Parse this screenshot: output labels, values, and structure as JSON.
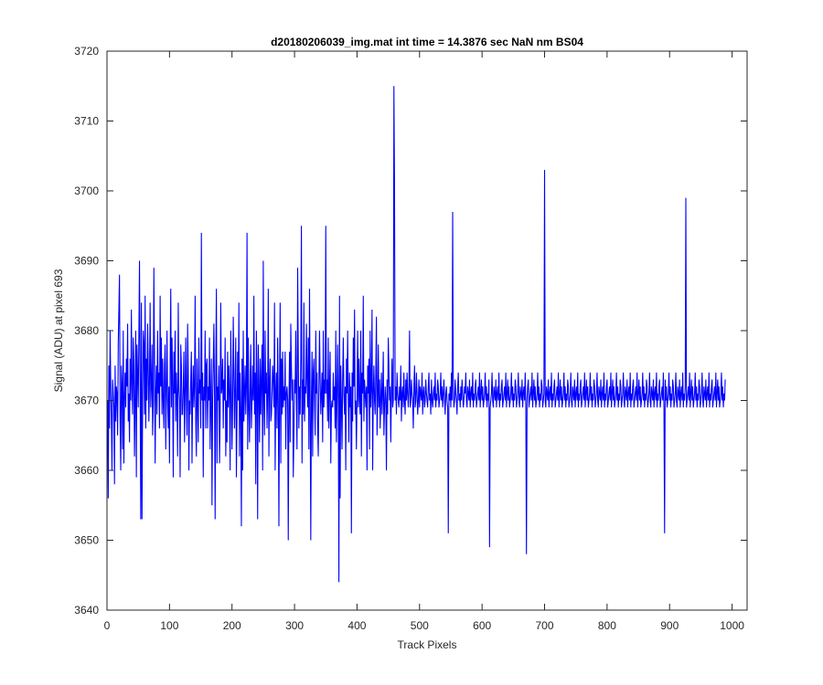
{
  "chart_data": {
    "type": "line",
    "title": "d20180206039_img.mat int time = 14.3876 sec  NaN nm BS04",
    "xlabel": "Track Pixels",
    "ylabel": "Signal (ADU) at pixel 693",
    "xlim": [
      0,
      1024
    ],
    "ylim": [
      3640,
      3720
    ],
    "xticks": [
      0,
      100,
      200,
      300,
      400,
      500,
      600,
      700,
      800,
      900,
      1000
    ],
    "yticks": [
      3640,
      3650,
      3660,
      3670,
      3680,
      3690,
      3700,
      3710,
      3720
    ],
    "xtick_labels": [
      "0",
      "100",
      "200",
      "300",
      "400",
      "500",
      "600",
      "700",
      "800",
      "900",
      "1000"
    ],
    "ytick_labels": [
      "3640",
      "3650",
      "3660",
      "3670",
      "3680",
      "3690",
      "3700",
      "3710",
      "3720"
    ],
    "grid": false,
    "box": true,
    "series": [
      {
        "color": "#0000ff",
        "x_start": 1,
        "x_step": 1,
        "y": [
          3670,
          3656,
          3675,
          3666,
          3680,
          3672,
          3668,
          3660,
          3673,
          3671,
          3669,
          3658,
          3675,
          3667,
          3672,
          3671,
          3665,
          3678,
          3683,
          3688,
          3667,
          3660,
          3675,
          3672,
          3663,
          3680,
          3661,
          3670,
          3674,
          3669,
          3676,
          3672,
          3681,
          3667,
          3671,
          3664,
          3676,
          3670,
          3683,
          3672,
          3668,
          3679,
          3675,
          3662,
          3670,
          3680,
          3659,
          3678,
          3674,
          3669,
          3679,
          3690,
          3672,
          3665,
          3684,
          3653,
          3670,
          3680,
          3678,
          3668,
          3685,
          3666,
          3676,
          3670,
          3681,
          3675,
          3667,
          3673,
          3684,
          3669,
          3672,
          3678,
          3665,
          3670,
          3689,
          3676,
          3661,
          3671,
          3675,
          3668,
          3680,
          3671,
          3674,
          3666,
          3685,
          3672,
          3679,
          3668,
          3676,
          3670,
          3666,
          3675,
          3678,
          3663,
          3671,
          3680,
          3670,
          3666,
          3672,
          3661,
          3675,
          3686,
          3669,
          3679,
          3672,
          3659,
          3677,
          3671,
          3680,
          3667,
          3674,
          3670,
          3662,
          3684,
          3672,
          3670,
          3659,
          3678,
          3675,
          3668,
          3668,
          3672,
          3677,
          3664,
          3671,
          3679,
          3670,
          3665,
          3681,
          3674,
          3660,
          3670,
          3668,
          3673,
          3677,
          3661,
          3671,
          3675,
          3669,
          3672,
          3685,
          3667,
          3662,
          3676,
          3670,
          3664,
          3679,
          3671,
          3673,
          3666,
          3694,
          3670,
          3674,
          3659,
          3672,
          3670,
          3680,
          3666,
          3675,
          3676,
          3666,
          3672,
          3670,
          3679,
          3663,
          3671,
          3676,
          3655,
          3670,
          3675,
          3681,
          3671,
          3668,
          3674,
          3686,
          3661,
          3672,
          3670,
          3675,
          3661,
          3668,
          3684,
          3671,
          3672,
          3676,
          3666,
          3673,
          3670,
          3679,
          3662,
          3670,
          3664,
          3677,
          3669,
          3675,
          3671,
          3660,
          3680,
          3672,
          3663,
          3670,
          3682,
          3674,
          3666,
          3672,
          3679,
          3659,
          3668,
          3677,
          3670,
          3684,
          3662,
          3674,
          3669,
          3670,
          3676,
          3660,
          3680,
          3667,
          3671,
          3675,
          3668,
          3672,
          3694,
          3663,
          3679,
          3669,
          3664,
          3672,
          3678,
          3666,
          3670,
          3675,
          3670,
          3685,
          3668,
          3674,
          3658,
          3680,
          3673,
          3653,
          3678,
          3672,
          3664,
          3676,
          3668,
          3673,
          3678,
          3660,
          3690,
          3670,
          3665,
          3680,
          3671,
          3674,
          3666,
          3671,
          3686,
          3662,
          3672,
          3676,
          3667,
          3668,
          3671,
          3675,
          3673,
          3669,
          3684,
          3660,
          3671,
          3674,
          3666,
          3679,
          3670,
          3652,
          3672,
          3684,
          3661,
          3676,
          3668,
          3677,
          3669,
          3672,
          3670,
          3677,
          3663,
          3671,
          3672,
          3670,
          3650,
          3669,
          3677,
          3664,
          3681,
          3675,
          3670,
          3673,
          3659,
          3665,
          3673,
          3671,
          3680,
          3670,
          3663,
          3689,
          3677,
          3666,
          3672,
          3668,
          3676,
          3670,
          3661,
          3673,
          3668,
          3684,
          3667,
          3672,
          3671,
          3681,
          3673,
          3669,
          3679,
          3663,
          3686,
          3670,
          3668,
          3670,
          3677,
          3662,
          3674,
          3676,
          3670,
          3665,
          3680,
          3671,
          3674,
          3666,
          3662,
          3672,
          3680,
          3673,
          3668,
          3671,
          3674,
          3664,
          3680,
          3669,
          3673,
          3671,
          3695,
          3671,
          3673,
          3667,
          3679,
          3666,
          3672,
          3677,
          3661,
          3669,
          3670,
          3669,
          3674,
          3670,
          3672,
          3666,
          3680,
          3664,
          3670,
          3678,
          3671,
          3664,
          3685,
          3656,
          3675,
          3670,
          3663,
          3673,
          3679,
          3671,
          3668,
          3672,
          3660,
          3676,
          3671,
          3680,
          3670,
          3664,
          3674,
          3669,
          3672,
          3651,
          3674,
          3667,
          3679,
          3672,
          3683,
          3668,
          3670,
          3663,
          3671,
          3680,
          3669,
          3676,
          3670,
          3668,
          3680,
          3662,
          3674,
          3671,
          3685,
          3667,
          3673,
          3671,
          3669,
          3672,
          3660,
          3675,
          3671,
          3676,
          3663,
          3680,
          3669,
          3672,
          3683,
          3660,
          3671,
          3675,
          3670,
          3668,
          3674,
          3682,
          3665,
          3670,
          3678,
          3669,
          3673,
          3666,
          3670,
          3674,
          3668,
          3671,
          3677,
          3665,
          3669,
          3672,
          3670,
          3660,
          3673,
          3668,
          3679,
          3674,
          3670,
          3672,
          3664,
          3671,
          3676,
          3669,
          3670,
          3673,
          3663,
          3670,
          3672,
          3668,
          3674,
          3671,
          3670,
          3669,
          3672,
          3670,
          3675,
          3667,
          3671,
          3672,
          3669,
          3674,
          3670,
          3668,
          3673,
          3670,
          3674,
          3671,
          3669,
          3672,
          3680,
          3669,
          3670,
          3673,
          3671,
          3670,
          3666,
          3672,
          3675,
          3669,
          3670,
          3674,
          3671,
          3668,
          3670,
          3673,
          3669,
          3672,
          3671,
          3670,
          3674,
          3668,
          3671,
          3672,
          3669,
          3670,
          3673,
          3671,
          3670,
          3669,
          3672,
          3674,
          3670,
          3671,
          3668,
          3673,
          3670,
          3669,
          3671,
          3672,
          3670,
          3674,
          3669,
          3671,
          3670,
          3673,
          3672,
          3669,
          3670,
          3671,
          3674,
          3670,
          3672,
          3669,
          3671,
          3673,
          3670,
          3668,
          3671,
          3672,
          3670,
          3669,
          3673,
          3671,
          3670,
          3672,
          3669,
          3674,
          3670,
          3671,
          3672,
          3669,
          3670,
          3673,
          3671,
          3670,
          3668,
          3672,
          3674,
          3670,
          3671,
          3669,
          3672,
          3670,
          3673,
          3671,
          3669,
          3670,
          3672,
          3671,
          3674,
          3670,
          3669,
          3672,
          3671,
          3670,
          3673,
          3669,
          3671,
          3672,
          3670,
          3674,
          3669,
          3671,
          3670,
          3672,
          3673,
          3669,
          3670,
          3671,
          3672,
          3670,
          3674,
          3669,
          3671,
          3673,
          3670,
          3672,
          3669,
          3670,
          3671,
          3674,
          3670,
          3672,
          3669,
          3671,
          3670,
          3673,
          3672,
          3669,
          3670,
          3671,
          3674,
          3670,
          3669,
          3672,
          3671,
          3670,
          3673,
          3669,
          3671,
          3672,
          3670,
          3674,
          3669,
          3671,
          3670,
          3672,
          3673,
          3669,
          3670,
          3671,
          3672,
          3670,
          3674,
          3669,
          3671,
          3673,
          3670,
          3672,
          3669,
          3670,
          3671,
          3674,
          3670,
          3672,
          3669,
          3671,
          3670,
          3673,
          3672,
          3669,
          3670,
          3671,
          3674,
          3670,
          3669,
          3672,
          3671,
          3670,
          3673,
          3669,
          3671,
          3672,
          3670,
          3674,
          3669,
          3671,
          3670,
          3672,
          3673,
          3669,
          3670,
          3671,
          3672,
          3670,
          3674,
          3669,
          3671,
          3673,
          3670,
          3672,
          3669,
          3670,
          3671,
          3674,
          3670,
          3672,
          3669,
          3671,
          3670,
          3673,
          3672,
          3669,
          3670,
          3671,
          3674,
          3670,
          3669,
          3672,
          3671,
          3670,
          3673,
          3669,
          3671,
          3672,
          3670,
          3674,
          3669,
          3671,
          3670,
          3672,
          3673,
          3669,
          3670,
          3671,
          3672,
          3670,
          3674,
          3669,
          3671,
          3673,
          3670,
          3672,
          3669,
          3670,
          3671,
          3674,
          3670,
          3672,
          3669,
          3671,
          3670,
          3673,
          3672,
          3669,
          3670,
          3671,
          3674,
          3670,
          3669,
          3672,
          3671,
          3670,
          3673,
          3669,
          3671,
          3672,
          3670,
          3674,
          3669,
          3671,
          3670,
          3672,
          3673,
          3669,
          3670,
          3671,
          3672,
          3670,
          3674,
          3669,
          3671,
          3673,
          3670,
          3672,
          3669,
          3670,
          3671,
          3674,
          3670,
          3672,
          3669,
          3671,
          3670,
          3673,
          3672,
          3669,
          3670,
          3671,
          3674,
          3670,
          3669,
          3672,
          3671,
          3670,
          3673,
          3669,
          3671,
          3672,
          3670,
          3674,
          3669,
          3671,
          3670,
          3672,
          3673,
          3669,
          3670,
          3671,
          3672,
          3670,
          3674,
          3669,
          3671,
          3673,
          3670,
          3672,
          3669,
          3670,
          3671,
          3674,
          3670,
          3672,
          3669,
          3671,
          3670,
          3673,
          3672,
          3669,
          3670,
          3671,
          3674,
          3670,
          3669,
          3672,
          3671,
          3670,
          3673,
          3669,
          3671,
          3672,
          3670,
          3674,
          3669,
          3671,
          3670,
          3672,
          3673,
          3669,
          3670,
          3671,
          3672,
          3670,
          3674,
          3669,
          3671,
          3673,
          3670,
          3672,
          3669,
          3670,
          3671,
          3674,
          3670,
          3672,
          3669,
          3671,
          3670,
          3673,
          3672,
          3669,
          3670,
          3671,
          3674,
          3670,
          3669,
          3672,
          3671,
          3670,
          3673,
          3669,
          3671,
          3672,
          3670,
          3674,
          3669,
          3671,
          3670,
          3672,
          3673,
          3669,
          3670,
          3671,
          3672,
          3670,
          3674,
          3669,
          3671,
          3673,
          3670,
          3672,
          3669,
          3670,
          3671,
          3674,
          3670,
          3672,
          3669,
          3671,
          3670,
          3673,
          3672,
          3669,
          3670,
          3671,
          3674,
          3670,
          3669,
          3672,
          3671,
          3670,
          3673,
          3669,
          3671,
          3672,
          3670,
          3674,
          3669,
          3671,
          3670,
          3672,
          3673,
          3669,
          3670,
          3671,
          3672,
          3670,
          3674,
          3669,
          3671,
          3673,
          3670,
          3672,
          3669,
          3670,
          3671,
          3674,
          3670,
          3672,
          3669,
          3671,
          3670,
          3673,
          3672,
          3669,
          3670,
          3671,
          3674,
          3670,
          3669,
          3672,
          3671,
          3670,
          3673,
          3669,
          3671,
          3672,
          3670,
          3674,
          3669,
          3671,
          3670,
          3672,
          3673,
          3669,
          3670,
          3671,
          3672,
          3670,
          3674,
          3669,
          3671,
          3673,
          3670,
          3672,
          3669,
          3670,
          3671,
          3674,
          3670,
          3672,
          3669,
          3671,
          3670,
          3673
        ],
        "overrides": {
          "371": 3644,
          "459": 3715,
          "460": 3700,
          "700": 3703,
          "926": 3699,
          "553": 3697,
          "311": 3695,
          "892": 3651,
          "671": 3648,
          "612": 3649,
          "326": 3650,
          "546": 3651,
          "215": 3652,
          "173": 3653,
          "54": 3653
        }
      }
    ]
  }
}
